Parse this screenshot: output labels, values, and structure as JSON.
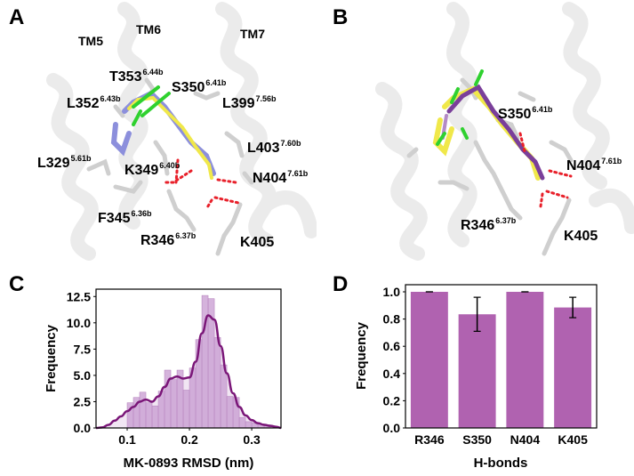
{
  "panels": {
    "A": {
      "letter": "A",
      "helix_labels": [
        "TM5",
        "TM6",
        "TM7"
      ],
      "residues": [
        {
          "name": "T353",
          "bw": "6.44b"
        },
        {
          "name": "S350",
          "bw": "6.41b"
        },
        {
          "name": "L352",
          "bw": "6.43b"
        },
        {
          "name": "L399",
          "bw": "7.56b"
        },
        {
          "name": "L403",
          "bw": "7.60b"
        },
        {
          "name": "L329",
          "bw": "5.61b"
        },
        {
          "name": "K349",
          "bw": "6.40b"
        },
        {
          "name": "N404",
          "bw": "7.61b"
        },
        {
          "name": "F345",
          "bw": "6.36b"
        },
        {
          "name": "R346",
          "bw": "6.37b"
        },
        {
          "name": "K405",
          "bw": ""
        }
      ]
    },
    "B": {
      "letter": "B",
      "residues": [
        {
          "name": "S350",
          "bw": "6.41b"
        },
        {
          "name": "N404",
          "bw": "7.61b"
        },
        {
          "name": "R346",
          "bw": "6.37b"
        },
        {
          "name": "K405",
          "bw": ""
        }
      ]
    },
    "C": {
      "letter": "C"
    },
    "D": {
      "letter": "D"
    }
  },
  "colors": {
    "ligand_blue": "#8c8fdc",
    "ligand_yellow": "#f0e84a",
    "ligand_purple": "#7a3f9a",
    "chlorine_green": "#2fd12f",
    "hbond_red": "#e8202a",
    "helix_gray": "#e8e8e8",
    "hist_fill": "#c79ad0",
    "kde_line": "#7a1678",
    "bar_fill": "#b062b0"
  },
  "chart_data": [
    {
      "panel": "C",
      "type": "bar",
      "subtype": "histogram_with_kde",
      "title": "",
      "xlabel": "MK-0893 RMSD (nm)",
      "ylabel": "Frequency",
      "xlim": [
        0.05,
        0.347
      ],
      "ylim": [
        0,
        13.2
      ],
      "xticks": [
        "0.1",
        "0.2",
        "0.3"
      ],
      "yticks": [
        "0.0",
        "2.5",
        "5.0",
        "7.5",
        "10.0",
        "12.5"
      ],
      "bin_width": 0.01,
      "bins_start": [
        0.1,
        0.11,
        0.12,
        0.13,
        0.14,
        0.15,
        0.16,
        0.17,
        0.18,
        0.19,
        0.2,
        0.21,
        0.22,
        0.23,
        0.24,
        0.25,
        0.26,
        0.27,
        0.28,
        0.29,
        0.3,
        0.31,
        0.32,
        0.33
      ],
      "values": [
        2.4,
        2.9,
        3.4,
        2.4,
        2.1,
        3.5,
        5.5,
        4.6,
        5.5,
        3.6,
        5.7,
        8.4,
        12.6,
        12.3,
        8.6,
        6.0,
        3.0,
        2.9,
        1.0,
        0.6,
        0.5,
        0.4,
        0.3,
        0.2
      ],
      "kde": {
        "x": [
          0.05,
          0.06,
          0.07,
          0.08,
          0.09,
          0.1,
          0.11,
          0.12,
          0.13,
          0.14,
          0.15,
          0.16,
          0.17,
          0.18,
          0.19,
          0.2,
          0.21,
          0.22,
          0.23,
          0.24,
          0.25,
          0.26,
          0.27,
          0.28,
          0.29,
          0.3,
          0.31,
          0.32,
          0.33,
          0.34,
          0.347
        ],
        "y": [
          0.0,
          0.05,
          0.3,
          0.7,
          1.1,
          1.6,
          2.0,
          2.5,
          2.7,
          2.5,
          3.0,
          3.9,
          4.7,
          4.9,
          4.7,
          4.8,
          6.3,
          9.0,
          10.7,
          10.3,
          7.8,
          5.2,
          3.3,
          2.0,
          1.2,
          0.75,
          0.45,
          0.3,
          0.2,
          0.1,
          0.0
        ]
      },
      "grid": false,
      "legend": null
    },
    {
      "panel": "D",
      "type": "bar",
      "title": "",
      "xlabel": "H-bonds",
      "ylabel": "Frequency",
      "ylim": [
        0.0,
        1.05
      ],
      "yticks": [
        "0.0",
        "0.2",
        "0.4",
        "0.6",
        "0.8",
        "1.0"
      ],
      "categories": [
        "R346",
        "S350",
        "N404",
        "K405"
      ],
      "values": [
        1.0,
        0.835,
        1.0,
        0.885
      ],
      "error_low": [
        1.0,
        0.71,
        1.0,
        0.81
      ],
      "error_high": [
        1.0,
        0.96,
        1.0,
        0.96
      ],
      "grid": false,
      "legend": null
    }
  ]
}
